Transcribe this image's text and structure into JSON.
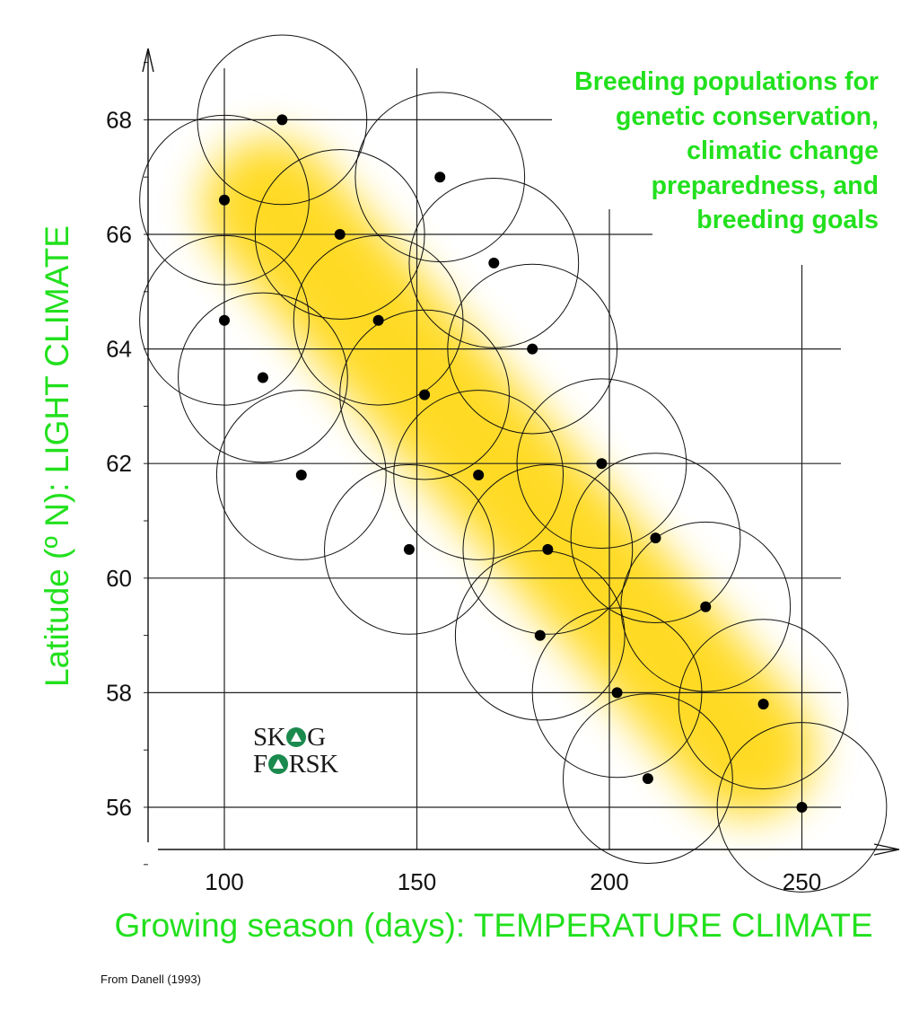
{
  "chart_data": {
    "type": "scatter",
    "title_lines": [
      "Breeding populations for",
      "genetic conservation,",
      "climatic change",
      "preparedness, and",
      "breeding goals"
    ],
    "xlabel": "Growing season (days): TEMPERATURE CLIMATE",
    "ylabel": "Latitude (º N): LIGHT CLIMATE",
    "xlim": [
      83,
      268
    ],
    "ylim": [
      54.3,
      69.9
    ],
    "x_ticks": [
      100,
      150,
      200,
      250
    ],
    "y_ticks": [
      56,
      58,
      60,
      62,
      64,
      66,
      68
    ],
    "grid": true,
    "point_color": "#000000",
    "circle_radius_days": 22,
    "points": [
      {
        "x": 115,
        "y": 68.0
      },
      {
        "x": 100,
        "y": 66.6
      },
      {
        "x": 156,
        "y": 67.0
      },
      {
        "x": 130,
        "y": 66.0
      },
      {
        "x": 170,
        "y": 65.5
      },
      {
        "x": 100,
        "y": 64.5
      },
      {
        "x": 140,
        "y": 64.5
      },
      {
        "x": 180,
        "y": 64.0
      },
      {
        "x": 110,
        "y": 63.5
      },
      {
        "x": 152,
        "y": 63.2
      },
      {
        "x": 120,
        "y": 61.8
      },
      {
        "x": 166,
        "y": 61.8
      },
      {
        "x": 198,
        "y": 62.0
      },
      {
        "x": 148,
        "y": 60.5
      },
      {
        "x": 184,
        "y": 60.5
      },
      {
        "x": 212,
        "y": 60.7
      },
      {
        "x": 182,
        "y": 59.0
      },
      {
        "x": 225,
        "y": 59.5
      },
      {
        "x": 202,
        "y": 58.0
      },
      {
        "x": 240,
        "y": 57.8
      },
      {
        "x": 210,
        "y": 56.5
      },
      {
        "x": 250,
        "y": 56.0
      }
    ],
    "highlight_band": {
      "color": "#ffd400",
      "from": {
        "x": 112,
        "y": 66.5
      },
      "to": {
        "x": 236,
        "y": 57.0
      }
    },
    "source_note": "From Danell (1993)",
    "logo": {
      "line1_a": "SK",
      "line1_b": "G",
      "line2_a": "F",
      "line2_b": "RSK"
    }
  }
}
